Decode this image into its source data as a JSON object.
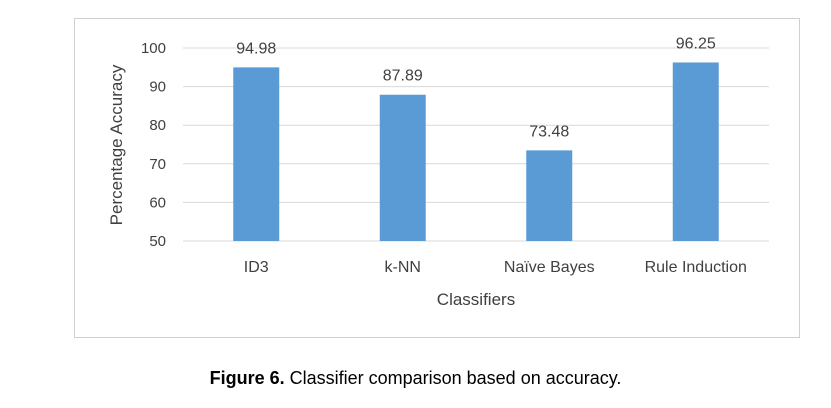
{
  "chart_data": {
    "type": "bar",
    "categories": [
      "ID3",
      "k-NN",
      "Naïve Bayes",
      "Rule Induction"
    ],
    "values": [
      94.98,
      87.89,
      73.48,
      96.25
    ],
    "data_labels": [
      "94.98",
      "87.89",
      "73.48",
      "96.25"
    ],
    "title": "",
    "xlabel": "Classifiers",
    "ylabel": "Percentage Accuracy",
    "ylim": [
      50,
      100
    ],
    "yticks": [
      50,
      60,
      70,
      80,
      90,
      100
    ],
    "grid": true,
    "legend": "none",
    "bar_color": "#5b9bd5"
  },
  "caption": {
    "label": "Figure 6.",
    "text": " Classifier comparison based on accuracy."
  }
}
